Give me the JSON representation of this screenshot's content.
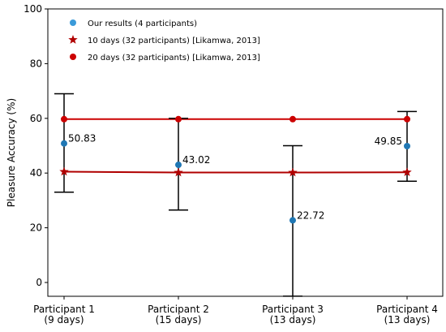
{
  "chart_data": {
    "type": "scatter",
    "ylabel": "Pleasure Accuracy (%)",
    "xlabel": "",
    "ylim": [
      -5,
      100
    ],
    "yticks": [
      0,
      20,
      40,
      60,
      80,
      100
    ],
    "grid": false,
    "legend_position": "top-left",
    "categories": [
      "Participant 1\n(9 days)",
      "Participant 2\n(15 days)",
      "Participant 3\n(13 days)",
      "Participant 4\n(13 days)"
    ],
    "series": [
      {
        "name": "Our results (4 participants)",
        "marker": "circle",
        "color": "#1f77b4",
        "legend_color": "#3a9ad9",
        "values": [
          50.83,
          43.02,
          22.72,
          49.85
        ],
        "labels": [
          "50.83",
          "43.02",
          "22.72",
          "49.85"
        ],
        "error_low": [
          33,
          26.5,
          -5,
          37
        ],
        "error_high": [
          69,
          60,
          50,
          62.5
        ]
      },
      {
        "name": "10 days (32 participants) [Likamwa, 2013]",
        "marker": "star",
        "color": "#b00000",
        "values": [
          40.5,
          40.2,
          40.2,
          40.3
        ]
      },
      {
        "name": "20 days (32 participants) [Likamwa, 2013]",
        "marker": "circle",
        "color": "#cc0000",
        "values": [
          59.7,
          59.7,
          59.7,
          59.7
        ]
      }
    ]
  }
}
